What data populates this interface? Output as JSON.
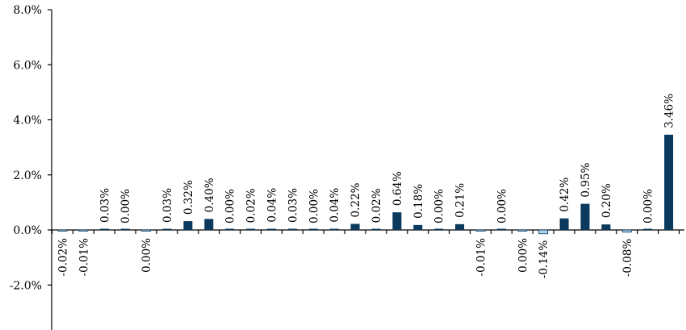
{
  "chart_data": {
    "type": "bar",
    "ylim": [
      -4,
      8
    ],
    "yticks": [
      -2,
      0,
      2,
      4,
      6,
      8
    ],
    "ytick_labels": [
      "-2.0%",
      "0.0%",
      "2.0%",
      "4.0%",
      "6.0%",
      "8.0%"
    ],
    "grid": false,
    "legend": "none",
    "series": [
      {
        "values": [
          -0.02,
          -0.01,
          0.03,
          0.0,
          -0.001,
          0.03,
          0.32,
          0.4,
          0.0,
          0.02,
          0.04,
          0.03,
          0.0,
          0.04,
          0.22,
          0.02,
          0.64,
          0.18,
          0.0,
          0.21,
          -0.01,
          0.0,
          -0.001,
          -0.14,
          0.42,
          0.95,
          0.2,
          -0.08,
          0.0,
          3.46
        ],
        "labels": [
          "-0.02%",
          "-0.01%",
          "0.03%",
          "0.00%",
          "0.00%",
          "0.03%",
          "0.32%",
          "0.40%",
          "0.00%",
          "0.02%",
          "0.04%",
          "0.03%",
          "0.00%",
          "0.04%",
          "0.22%",
          "0.02%",
          "0.64%",
          "0.18%",
          "0.00%",
          "0.21%",
          "-0.01%",
          "0.00%",
          "0.00%",
          "-0.14%",
          "0.42%",
          "0.95%",
          "0.20%",
          "-0.08%",
          "0.00%",
          "3.46%"
        ],
        "label_side": [
          "below",
          "below",
          "above",
          "above",
          "below",
          "above",
          "above",
          "above",
          "above",
          "above",
          "above",
          "above",
          "above",
          "above",
          "above",
          "above",
          "above",
          "above",
          "above",
          "above",
          "below",
          "above",
          "below",
          "below",
          "above",
          "above",
          "above",
          "below",
          "above",
          "above"
        ]
      }
    ],
    "colors": {
      "positive_fill": "#0b3a5e",
      "negative_fill": "#a9d1ea",
      "negative_stroke": "#0b3a5e",
      "axis": "#000000"
    }
  }
}
